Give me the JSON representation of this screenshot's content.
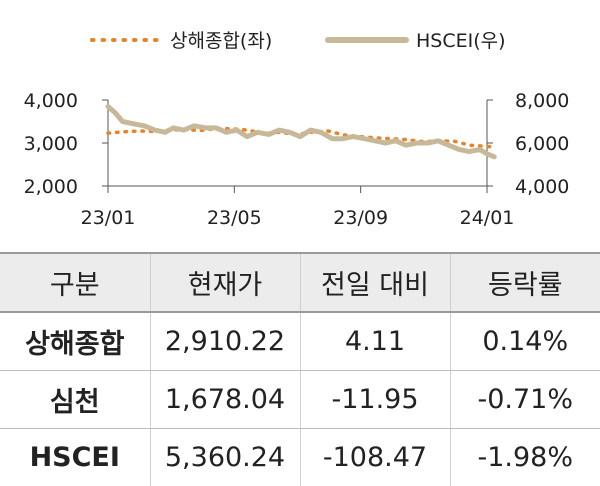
{
  "chart_data": {
    "type": "line",
    "legend": {
      "placement": "top",
      "items": [
        {
          "label": "상해종합(좌)",
          "style": "dotted",
          "color": "#e8832a"
        },
        {
          "label": "HSCEI(우)",
          "style": "solid",
          "color": "#c8b89a"
        }
      ]
    },
    "x_ticks": [
      "23/01",
      "23/05",
      "23/09",
      "24/01"
    ],
    "left_axis": {
      "ylim": [
        2000,
        4000
      ],
      "ticks": [
        "2,000",
        "3,000",
        "4,000"
      ]
    },
    "right_axis": {
      "ylim": [
        4000,
        8000
      ],
      "ticks": [
        "4,000",
        "6,000",
        "8,000"
      ]
    },
    "series": [
      {
        "name": "상해종합(좌)",
        "axis": "left",
        "color": "#e8832a",
        "x": [
          "2023-01-01",
          "2023-01-15",
          "2023-02-01",
          "2023-02-15",
          "2023-03-01",
          "2023-03-15",
          "2023-04-01",
          "2023-04-15",
          "2023-05-01",
          "2023-05-15",
          "2023-06-01",
          "2023-06-15",
          "2023-07-01",
          "2023-07-15",
          "2023-08-01",
          "2023-08-15",
          "2023-09-01",
          "2023-09-15",
          "2023-10-01",
          "2023-10-15",
          "2023-11-01",
          "2023-11-15",
          "2023-12-01",
          "2023-12-15",
          "2024-01-01",
          "2024-01-08"
        ],
        "values": [
          3230,
          3260,
          3280,
          3270,
          3300,
          3310,
          3290,
          3340,
          3330,
          3300,
          3220,
          3250,
          3200,
          3250,
          3280,
          3190,
          3150,
          3120,
          3100,
          3080,
          3030,
          3050,
          3040,
          2950,
          2920,
          2910
        ]
      },
      {
        "name": "HSCEI(우)",
        "axis": "right",
        "color": "#c8b89a",
        "x": [
          "2023-01-01",
          "2023-01-08",
          "2023-01-15",
          "2023-01-25",
          "2023-02-05",
          "2023-02-15",
          "2023-02-25",
          "2023-03-05",
          "2023-03-15",
          "2023-03-25",
          "2023-04-05",
          "2023-04-15",
          "2023-04-25",
          "2023-05-05",
          "2023-05-15",
          "2023-05-25",
          "2023-06-05",
          "2023-06-15",
          "2023-06-25",
          "2023-07-05",
          "2023-07-15",
          "2023-07-25",
          "2023-08-05",
          "2023-08-15",
          "2023-08-25",
          "2023-09-05",
          "2023-09-15",
          "2023-09-25",
          "2023-10-05",
          "2023-10-15",
          "2023-10-25",
          "2023-11-05",
          "2023-11-15",
          "2023-11-25",
          "2023-12-05",
          "2023-12-15",
          "2023-12-25",
          "2024-01-01",
          "2024-01-08"
        ],
        "values": [
          7700,
          7400,
          7000,
          6900,
          6800,
          6600,
          6500,
          6700,
          6600,
          6800,
          6700,
          6700,
          6500,
          6600,
          6300,
          6500,
          6400,
          6600,
          6500,
          6300,
          6600,
          6500,
          6200,
          6200,
          6300,
          6200,
          6100,
          6000,
          6100,
          5900,
          6000,
          6000,
          6100,
          5900,
          5700,
          5600,
          5700,
          5500,
          5360
        ]
      }
    ]
  },
  "table": {
    "headers": [
      "구분",
      "현재가",
      "전일 대비",
      "등락률"
    ],
    "rows": [
      [
        "상해종합",
        "2,910.22",
        "4.11",
        "0.14%"
      ],
      [
        "심천",
        "1,678.04",
        "-11.95",
        "-0.71%"
      ],
      [
        "HSCEI",
        "5,360.24",
        "-108.47",
        "-1.98%"
      ]
    ]
  }
}
